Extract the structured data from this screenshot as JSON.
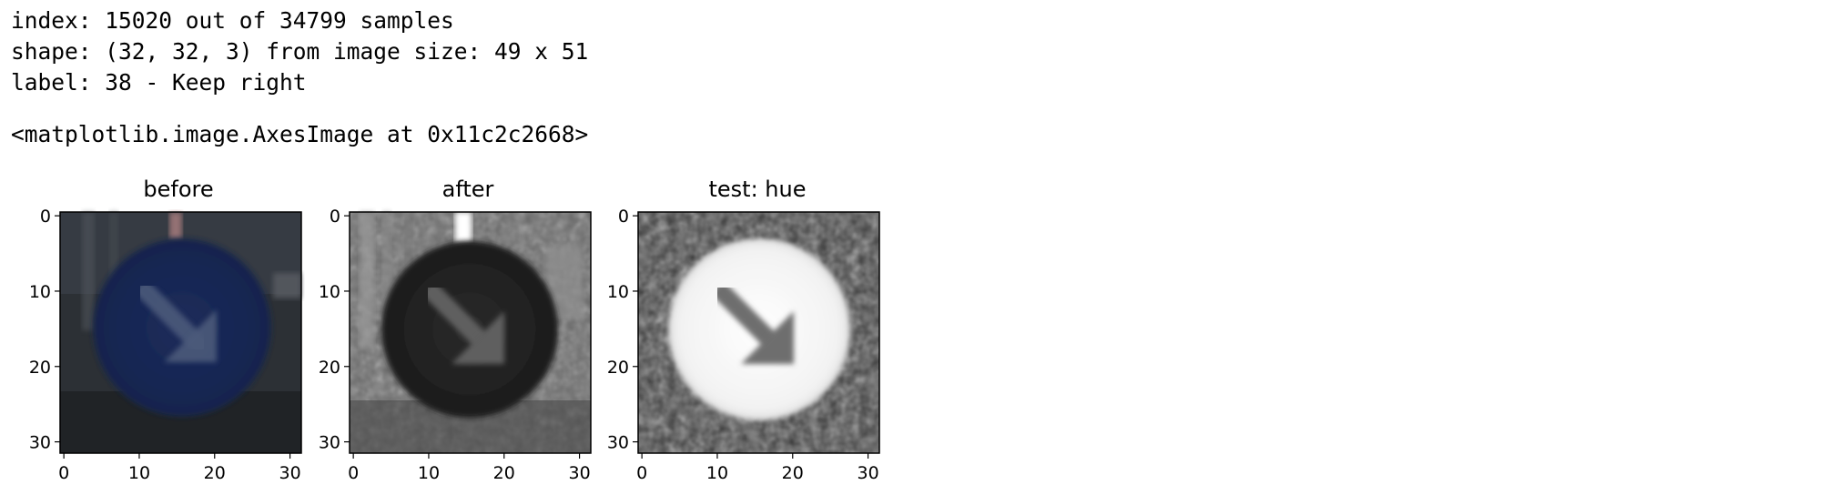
{
  "output": {
    "line1": "index: 15020 out of 34799 samples",
    "line2": "shape: (32, 32, 3) from image size: 49 x 51",
    "line3": "label: 38 - Keep right",
    "repr": "<matplotlib.image.AxesImage at 0x11c2c2668>"
  },
  "panels": [
    {
      "title": "before"
    },
    {
      "title": "after"
    },
    {
      "title": "test: hue"
    }
  ],
  "ticks": [
    "0",
    "10",
    "20",
    "30"
  ]
}
